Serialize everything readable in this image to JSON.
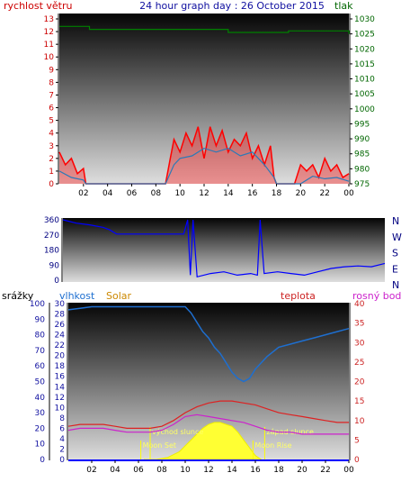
{
  "chart_data": [
    {
      "type": "line",
      "title": "24 hour graph day : 26 October 2015",
      "left_axis_label": "rychlost větru",
      "right_axis_label": "tlak",
      "x_ticks": [
        "02",
        "04",
        "06",
        "08",
        "10",
        "12",
        "14",
        "16",
        "18",
        "20",
        "22",
        "00"
      ],
      "left_ticks": [
        "0",
        "1",
        "2",
        "3",
        "4",
        "5",
        "6",
        "7",
        "8",
        "9",
        "10",
        "11",
        "12",
        "13"
      ],
      "right_ticks": [
        "975",
        "980",
        "985",
        "990",
        "995",
        "1000",
        "1005",
        "1010",
        "1015",
        "1020",
        "1025",
        "1030"
      ],
      "ylim_left": [
        0,
        13
      ],
      "ylim_right": [
        975,
        1030
      ],
      "series": [
        {
          "color": "#ff0000",
          "axis": "left",
          "kind": "gust",
          "x": [
            0.0,
            0.5,
            1.0,
            1.5,
            2.0,
            2.2,
            8.8,
            9.2,
            9.5,
            10.0,
            10.5,
            11.0,
            11.5,
            12.0,
            12.5,
            13.0,
            13.5,
            14.0,
            14.5,
            15.0,
            15.5,
            16.0,
            16.5,
            17.0,
            17.5,
            17.8,
            18.0,
            19.5,
            20.0,
            20.5,
            21.0,
            21.5,
            22.0,
            22.5,
            23.0,
            23.5,
            24.0
          ],
          "y": [
            2.5,
            1.5,
            2.0,
            0.8,
            1.2,
            0.0,
            0.0,
            2.0,
            3.5,
            2.5,
            4.0,
            3.0,
            4.5,
            2.0,
            4.5,
            3.0,
            4.2,
            2.5,
            3.5,
            3.0,
            4.0,
            2.0,
            3.0,
            1.5,
            3.0,
            0.5,
            0.0,
            0.0,
            1.5,
            1.0,
            1.5,
            0.5,
            2.0,
            1.0,
            1.5,
            0.5,
            0.8
          ]
        },
        {
          "color": "#2a7ab8",
          "axis": "left",
          "kind": "average",
          "x": [
            0.0,
            1.0,
            2.0,
            2.2,
            8.8,
            9.5,
            10.0,
            11.0,
            12.0,
            13.0,
            14.0,
            15.0,
            16.0,
            17.0,
            17.8,
            18.0,
            20.0,
            21.0,
            22.0,
            23.0,
            24.0
          ],
          "y": [
            1.0,
            0.5,
            0.3,
            0.0,
            0.0,
            1.5,
            2.0,
            2.2,
            2.8,
            2.5,
            2.8,
            2.2,
            2.5,
            1.5,
            0.5,
            0.0,
            0.0,
            0.6,
            0.4,
            0.5,
            0.2
          ]
        },
        {
          "color": "#008000",
          "axis": "right",
          "kind": "pressure",
          "x": [
            0.0,
            1.5,
            2.5,
            6.0,
            9.5,
            11.0,
            13.5,
            14.0,
            17.5,
            18.5,
            19.0,
            24.0
          ],
          "y": [
            1027.5,
            1027.5,
            1026.5,
            1026.5,
            1026.5,
            1026.5,
            1026.5,
            1025.5,
            1025.5,
            1025.5,
            1026.0,
            1025.0
          ]
        }
      ]
    },
    {
      "type": "line",
      "right_labels": [
        "N",
        "W",
        "S",
        "E",
        "N"
      ],
      "left_ticks": [
        "0",
        "90",
        "180",
        "270",
        "360"
      ],
      "ylim": [
        0,
        360
      ],
      "series": [
        {
          "color": "#0000ff",
          "kind": "wind direction",
          "x": [
            0.0,
            1.0,
            2.0,
            3.0,
            3.5,
            4.0,
            6.0,
            8.0,
            9.0,
            9.3,
            9.5,
            9.7,
            10.0,
            11.0,
            12.0,
            13.0,
            14.0,
            14.5,
            14.7,
            15.0,
            16.0,
            17.0,
            18.0,
            19.0,
            20.0,
            21.0,
            22.0,
            23.0,
            24.0
          ],
          "y": [
            360,
            340,
            330,
            315,
            300,
            275,
            275,
            275,
            275,
            360,
            30,
            360,
            20,
            40,
            50,
            30,
            40,
            30,
            360,
            40,
            50,
            40,
            30,
            50,
            70,
            80,
            85,
            80,
            100
          ]
        }
      ]
    },
    {
      "type": "line",
      "left_axis_label": "srážky",
      "header_labels": [
        "vlhkost",
        "Solar",
        "teplota",
        "rosný bod"
      ],
      "left_ticks_outer": [
        "0",
        "10",
        "20",
        "30",
        "40",
        "50",
        "60",
        "70",
        "80",
        "90",
        "100"
      ],
      "left_ticks_inner": [
        "0",
        "2",
        "4",
        "6",
        "8",
        "10",
        "12",
        "14",
        "16",
        "18",
        "20",
        "22",
        "24",
        "26",
        "28",
        "30"
      ],
      "right_ticks": [
        "0",
        "5",
        "10",
        "15",
        "20",
        "25",
        "30",
        "35",
        "40"
      ],
      "ylim_humidity": [
        0,
        100
      ],
      "ylim_temperature": [
        0,
        40
      ],
      "annotations": [
        "Moon Set",
        "východ slunce",
        "západ slunce",
        "Moon Rise"
      ],
      "series": [
        {
          "name": "vlhkost",
          "color": "#1e6fd0",
          "x": [
            0,
            1,
            2,
            4,
            6,
            8,
            9,
            10,
            10.5,
            11,
            11.5,
            12,
            12.5,
            13,
            13.5,
            14,
            14.5,
            15,
            15.5,
            16,
            16.5,
            17,
            18,
            19,
            20,
            21,
            22,
            23,
            24
          ],
          "y": [
            96,
            97,
            98,
            98,
            98,
            98,
            98,
            98,
            94,
            88,
            82,
            78,
            72,
            68,
            62,
            56,
            52,
            50,
            52,
            58,
            62,
            66,
            72,
            74,
            76,
            78,
            80,
            82,
            84
          ]
        },
        {
          "name": "teplota",
          "color": "#dd2222",
          "x": [
            0,
            1,
            2,
            3,
            4,
            5,
            6,
            7,
            8,
            9,
            10,
            11,
            12,
            13,
            14,
            15,
            16,
            17,
            18,
            19,
            20,
            21,
            22,
            23,
            24
          ],
          "y": [
            8.5,
            9,
            9,
            9,
            8.5,
            8,
            8,
            8,
            8.5,
            10,
            12,
            13.5,
            14.5,
            15,
            15,
            14.5,
            14,
            13,
            12,
            11.5,
            11,
            10.5,
            10,
            9.5,
            9.5
          ]
        },
        {
          "name": "rosný bod",
          "color": "#cc22cc",
          "x": [
            0,
            1,
            2,
            3,
            4,
            5,
            6,
            7,
            8,
            9,
            10,
            11,
            12,
            13,
            14,
            15,
            16,
            17,
            18,
            19,
            20,
            21,
            22,
            23,
            24
          ],
          "y": [
            7.5,
            8,
            8,
            8,
            7.5,
            7,
            7,
            7,
            7.5,
            9,
            11,
            11.5,
            11,
            10.5,
            10,
            9.5,
            8.5,
            7.5,
            7,
            7,
            6.5,
            6.5,
            6.5,
            6.5,
            6.5
          ]
        },
        {
          "name": "Solar",
          "color": "#ffff33",
          "x": [
            6.5,
            7.5,
            8.5,
            9.5,
            10.5,
            11.5,
            12,
            12.5,
            13,
            13.5,
            14,
            14.5,
            15,
            15.5,
            16,
            16.5
          ],
          "y": [
            0,
            0,
            0.5,
            2,
            5,
            8,
            9,
            9.5,
            9.5,
            9,
            8.5,
            7,
            5,
            3,
            1,
            0
          ]
        }
      ]
    }
  ]
}
